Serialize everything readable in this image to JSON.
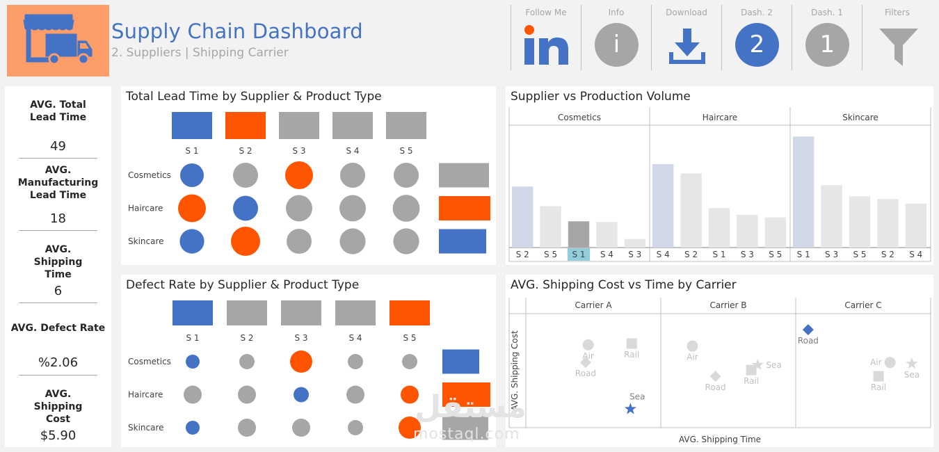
{
  "header": {
    "title": "Supply Chain Dashboard",
    "subtitle": "2. Suppliers | Shipping Carrier",
    "logo_icon": "shop-truck-icon",
    "brand_color": "#4472c4",
    "accent_color": "#ff5500",
    "logo_bg": "#fc9d6a"
  },
  "nav": [
    {
      "label": "Follow Me",
      "icon": "linkedin-icon"
    },
    {
      "label": "Info",
      "icon": "info-icon",
      "glyph": "i"
    },
    {
      "label": "Download",
      "icon": "download-icon"
    },
    {
      "label": "Dash. 2",
      "icon": "dash-2-icon",
      "glyph": "2",
      "active": true
    },
    {
      "label": "Dash. 1",
      "icon": "dash-1-icon",
      "glyph": "1"
    },
    {
      "label": "Filters",
      "icon": "filter-icon"
    }
  ],
  "kpis": [
    {
      "label": "AVG. Total Lead Time",
      "value": "49"
    },
    {
      "label": "AVG. Manufacturing Lead Time",
      "value": "18"
    },
    {
      "label": "AVG. Shipping Time",
      "value": "6"
    },
    {
      "label": "AVG. Defect Rate",
      "value": "%2.06"
    },
    {
      "label": "AVG. Shipping Cost",
      "value": "$5.90"
    }
  ],
  "lead_time": {
    "title": "Total Lead Time by Supplier & Product Type",
    "suppliers": [
      "S 1",
      "S 2",
      "S 3",
      "S 4",
      "S 5"
    ],
    "supplier_colors": [
      "blue",
      "orange",
      "grey",
      "grey",
      "grey"
    ],
    "products": [
      "Cosmetics",
      "Haircare",
      "Skincare"
    ],
    "product_colors": [
      "grey",
      "orange",
      "blue"
    ],
    "cells": [
      [
        {
          "c": "blue",
          "s": 0.85
        },
        {
          "c": "grey",
          "s": 0.9
        },
        {
          "c": "orange",
          "s": 1.0
        },
        {
          "c": "grey",
          "s": 0.9
        },
        {
          "c": "grey",
          "s": 0.9
        }
      ],
      [
        {
          "c": "orange",
          "s": 1.0
        },
        {
          "c": "blue",
          "s": 0.9
        },
        {
          "c": "grey",
          "s": 0.95
        },
        {
          "c": "grey",
          "s": 0.95
        },
        {
          "c": "grey",
          "s": 0.97
        }
      ],
      [
        {
          "c": "blue",
          "s": 0.88
        },
        {
          "c": "orange",
          "s": 1.05
        },
        {
          "c": "grey",
          "s": 0.9
        },
        {
          "c": "grey",
          "s": 0.93
        },
        {
          "c": "grey",
          "s": 0.93
        }
      ]
    ]
  },
  "defect_rate": {
    "title": "Defect Rate by Supplier & Product Type",
    "suppliers": [
      "S 1",
      "S 2",
      "S 3",
      "S 4",
      "S 5"
    ],
    "supplier_colors": [
      "blue",
      "grey",
      "grey",
      "grey",
      "orange"
    ],
    "products": [
      "Cosmetics",
      "Haircare",
      "Skincare"
    ],
    "product_colors": [
      "blue",
      "orange",
      "grey"
    ],
    "cells": [
      [
        {
          "c": "blue",
          "s": 0.5
        },
        {
          "c": "grey",
          "s": 0.55
        },
        {
          "c": "orange",
          "s": 0.8
        },
        {
          "c": "grey",
          "s": 0.55
        },
        {
          "c": "grey",
          "s": 0.55
        }
      ],
      [
        {
          "c": "grey",
          "s": 0.65
        },
        {
          "c": "grey",
          "s": 0.65
        },
        {
          "c": "blue",
          "s": 0.55
        },
        {
          "c": "grey",
          "s": 0.65
        },
        {
          "c": "orange",
          "s": 0.65
        }
      ],
      [
        {
          "c": "blue",
          "s": 0.5
        },
        {
          "c": "grey",
          "s": 0.65
        },
        {
          "c": "grey",
          "s": 0.65
        },
        {
          "c": "grey",
          "s": 0.55
        },
        {
          "c": "orange",
          "s": 0.8
        }
      ]
    ]
  },
  "chart_data": [
    {
      "type": "bar",
      "title": "Supplier vs Production Volume",
      "panels": [
        {
          "name": "Cosmetics",
          "categories": [
            "S 2",
            "S 5",
            "S 1",
            "S 4",
            "S 3"
          ],
          "values": [
            93,
            63,
            40,
            39,
            13
          ],
          "highlight": [
            "S 2",
            "S 1"
          ]
        },
        {
          "name": "Haircare",
          "categories": [
            "S 4",
            "S 2",
            "S 1",
            "S 3",
            "S 5"
          ],
          "values": [
            127,
            113,
            60,
            50,
            46
          ],
          "highlight": [
            "S 4"
          ]
        },
        {
          "name": "Skincare",
          "categories": [
            "S 1",
            "S 3",
            "S 5",
            "S 2",
            "S 4"
          ],
          "values": [
            169,
            95,
            78,
            74,
            67
          ],
          "highlight": [
            "S 1"
          ]
        }
      ],
      "selected": "S 1",
      "ylim": [
        0,
        180
      ]
    },
    {
      "type": "scatter",
      "title": "AVG. Shipping Cost vs Time by Carrier",
      "xlabel": "AVG. Shipping Time",
      "ylabel": "AVG. Shipping Cost",
      "panels": [
        {
          "name": "Carrier A",
          "points": [
            {
              "label": "Air",
              "shape": "circle",
              "x": 4.6,
              "y": 6.3,
              "hl": false
            },
            {
              "label": "Rail",
              "shape": "square",
              "x": 8.0,
              "y": 6.4,
              "hl": false
            },
            {
              "label": "Road",
              "shape": "diamond",
              "x": 4.4,
              "y": 4.9,
              "hl": false
            },
            {
              "label": "Sea",
              "shape": "star",
              "x": 7.9,
              "y": 1.2,
              "hl": true
            }
          ]
        },
        {
          "name": "Carrier B",
          "points": [
            {
              "label": "Air",
              "shape": "circle",
              "x": 2.2,
              "y": 6.2,
              "hl": false
            },
            {
              "label": "Sea",
              "shape": "star",
              "x": 7.3,
              "y": 4.7,
              "hl": false
            },
            {
              "label": "Rail",
              "shape": "square",
              "x": 6.8,
              "y": 4.3,
              "hl": false
            },
            {
              "label": "Road",
              "shape": "diamond",
              "x": 4.0,
              "y": 3.8,
              "hl": false
            }
          ]
        },
        {
          "name": "Carrier C",
          "points": [
            {
              "label": "Road",
              "shape": "diamond",
              "x": 0.7,
              "y": 7.5,
              "hl": true
            },
            {
              "label": "Air",
              "shape": "circle",
              "x": 7.1,
              "y": 4.9,
              "hl": false
            },
            {
              "label": "Sea",
              "shape": "star",
              "x": 8.8,
              "y": 4.8,
              "hl": false
            },
            {
              "label": "Rail",
              "shape": "square",
              "x": 6.2,
              "y": 3.8,
              "hl": false
            }
          ]
        }
      ],
      "xlim": [
        0,
        10
      ],
      "ylim": [
        0,
        8.5
      ]
    }
  ],
  "watermark": {
    "arabic": "مستقل",
    "latin": "mostaql.com"
  },
  "colors": {
    "blue": "#4472c4",
    "orange": "#ff5500",
    "grey": "#a6a6a6",
    "light_blue": "#d0d8e8",
    "light_grey": "#e6e6e6",
    "mid_grey": "#a6a6a6",
    "sel_bg": "#92cddc"
  }
}
